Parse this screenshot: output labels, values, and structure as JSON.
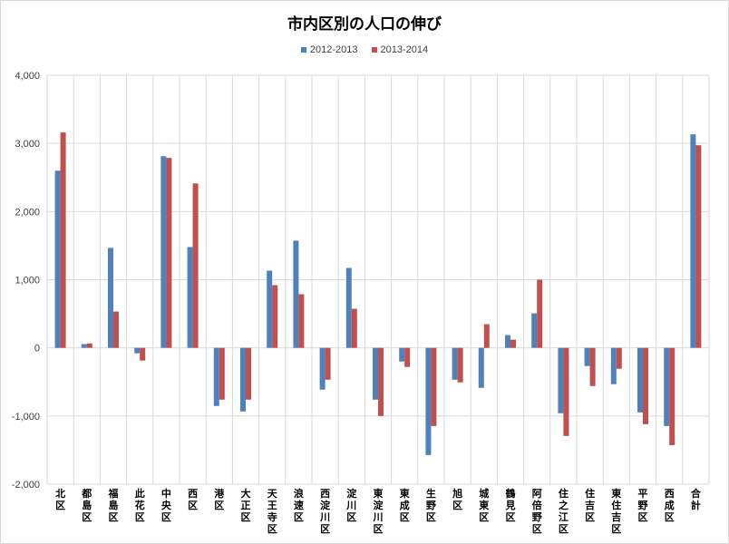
{
  "chart_data": {
    "type": "bar",
    "title": "市内区別の人口の伸び",
    "xlabel": "",
    "ylabel": "",
    "ylim": [
      -2000,
      4000
    ],
    "yticks": [
      "4,000",
      "3,000",
      "2,000",
      "1,000",
      "0",
      "-1,000",
      "-2,000"
    ],
    "ytick_values": [
      4000,
      3000,
      2000,
      1000,
      0,
      -1000,
      -2000
    ],
    "grid": true,
    "legend_position": "top",
    "categories": [
      "北区",
      "都島区",
      "福島区",
      "此花区",
      "中央区",
      "西区",
      "港区",
      "大正区",
      "天王寺区",
      "浪速区",
      "西淀川区",
      "淀川区",
      "東淀川区",
      "東成区",
      "生野区",
      "旭区",
      "城東区",
      "鶴見区",
      "阿倍野区",
      "住之江区",
      "住吉区",
      "東住吉区",
      "平野区",
      "西成区",
      "合計"
    ],
    "series": [
      {
        "name": "2012-2013",
        "color": "#4f81bd",
        "values": [
          2600,
          55,
          1467,
          -80,
          2813,
          1480,
          -853,
          -933,
          1133,
          1573,
          -613,
          1173,
          -760,
          -200,
          -1573,
          -467,
          -587,
          187,
          507,
          -960,
          -267,
          -533,
          -947,
          -1147,
          3133
        ]
      },
      {
        "name": "2013-2014",
        "color": "#c0504d",
        "values": [
          3160,
          65,
          533,
          -187,
          2787,
          2413,
          -760,
          -760,
          920,
          787,
          -467,
          573,
          -1000,
          -280,
          -1147,
          -507,
          347,
          120,
          1000,
          -1293,
          -560,
          -307,
          -1120,
          -1427,
          2973
        ]
      }
    ]
  }
}
